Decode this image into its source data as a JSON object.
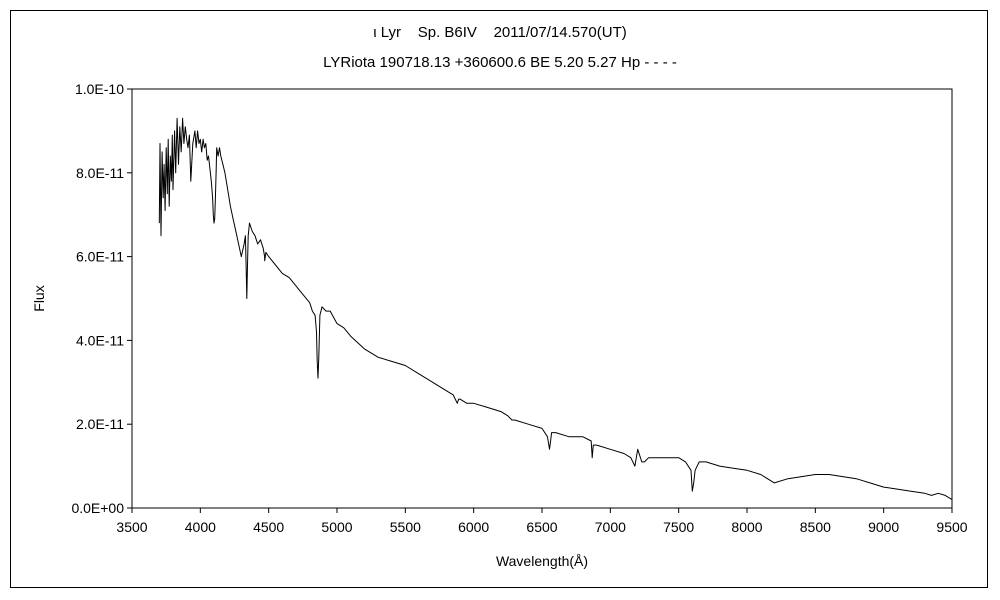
{
  "chart_data": {
    "type": "line",
    "title": "ι Lyr    Sp. B6IV    2011/07/14.570(UT)",
    "subtitle": "LYRiota 190718.13 +360600.6 BE 5.20 5.27 Hp - - - -",
    "xlabel": "Wavelength(Å)",
    "ylabel": "Flux",
    "xlim": [
      3500,
      9500
    ],
    "ylim": [
      0,
      1e-10
    ],
    "x_ticks": [
      3500,
      4000,
      4500,
      5000,
      5500,
      6000,
      6500,
      7000,
      7500,
      8000,
      8500,
      9000,
      9500
    ],
    "x_tick_labels": [
      "3500",
      "4000",
      "4500",
      "5000",
      "5500",
      "6000",
      "6500",
      "7000",
      "7500",
      "8000",
      "8500",
      "9000",
      "9500"
    ],
    "y_ticks": [
      0,
      2e-11,
      4e-11,
      6e-11,
      8e-11,
      1e-10
    ],
    "y_tick_labels": [
      "0.0E+00",
      "2.0E-11",
      "4.0E-11",
      "6.0E-11",
      "8.0E-11",
      "1.0E-10"
    ],
    "grid": false,
    "legend": "none",
    "series": [
      {
        "color": "#000000",
        "x": [
          3700,
          3705,
          3712,
          3720,
          3728,
          3735,
          3742,
          3750,
          3758,
          3765,
          3772,
          3780,
          3788,
          3795,
          3800,
          3812,
          3820,
          3830,
          3840,
          3850,
          3860,
          3870,
          3880,
          3890,
          3900,
          3910,
          3920,
          3930,
          3945,
          3960,
          3970,
          3980,
          3990,
          4000,
          4010,
          4020,
          4030,
          4040,
          4050,
          4060,
          4070,
          4080,
          4090,
          4095,
          4100,
          4105,
          4110,
          4115,
          4120,
          4130,
          4140,
          4150,
          4165,
          4180,
          4200,
          4220,
          4240,
          4260,
          4280,
          4300,
          4320,
          4330,
          4335,
          4340,
          4345,
          4350,
          4360,
          4380,
          4400,
          4420,
          4440,
          4460,
          4470,
          4471,
          4480,
          4500,
          4550,
          4600,
          4650,
          4700,
          4750,
          4800,
          4820,
          4840,
          4850,
          4855,
          4861,
          4867,
          4875,
          4890,
          4920,
          4950,
          5000,
          5050,
          5100,
          5200,
          5300,
          5400,
          5500,
          5600,
          5700,
          5800,
          5850,
          5880,
          5890,
          5900,
          5950,
          6000,
          6100,
          6200,
          6250,
          6280,
          6300,
          6400,
          6500,
          6540,
          6555,
          6563,
          6570,
          6600,
          6700,
          6800,
          6860,
          6867,
          6875,
          6900,
          7000,
          7100,
          7150,
          7180,
          7200,
          7230,
          7250,
          7280,
          7300,
          7400,
          7500,
          7550,
          7590,
          7600,
          7610,
          7620,
          7650,
          7700,
          7800,
          7900,
          8000,
          8100,
          8150,
          8200,
          8300,
          8400,
          8500,
          8600,
          8700,
          8800,
          8850,
          8900,
          8950,
          9000,
          9100,
          9200,
          9300,
          9350,
          9400,
          9450,
          9500
        ],
        "y": [
          6.8e-11,
          8.7e-11,
          6.5e-11,
          8.5e-11,
          7.4e-11,
          8.2e-11,
          7.1e-11,
          8.6e-11,
          7.5e-11,
          8.8e-11,
          7.2e-11,
          8.4e-11,
          7.8e-11,
          8.9e-11,
          7.6e-11,
          9e-11,
          8e-11,
          9.3e-11,
          8.2e-11,
          9.1e-11,
          8.5e-11,
          9.3e-11,
          8.7e-11,
          9.1e-11,
          8.8e-11,
          8.6e-11,
          8.9e-11,
          7.8e-11,
          8.7e-11,
          9e-11,
          8.6e-11,
          9e-11,
          8.7e-11,
          8.8e-11,
          8.5e-11,
          8.8e-11,
          8.6e-11,
          8.7e-11,
          8.3e-11,
          8.4e-11,
          8.1e-11,
          7.8e-11,
          7.4e-11,
          7e-11,
          6.8e-11,
          6.9e-11,
          7.4e-11,
          8e-11,
          8.6e-11,
          8.4e-11,
          8.6e-11,
          8.4e-11,
          8.2e-11,
          8e-11,
          7.6e-11,
          7.2e-11,
          6.9e-11,
          6.6e-11,
          6.3e-11,
          6e-11,
          6.3e-11,
          6.5e-11,
          5.8e-11,
          5e-11,
          5.8e-11,
          6.5e-11,
          6.8e-11,
          6.6e-11,
          6.5e-11,
          6.3e-11,
          6.4e-11,
          6.2e-11,
          6e-11,
          5.9e-11,
          6.1e-11,
          6e-11,
          5.8e-11,
          5.6e-11,
          5.5e-11,
          5.3e-11,
          5.1e-11,
          4.9e-11,
          4.7e-11,
          4.6e-11,
          4.2e-11,
          3.5e-11,
          3.1e-11,
          3.6e-11,
          4.6e-11,
          4.8e-11,
          4.7e-11,
          4.7e-11,
          4.4e-11,
          4.3e-11,
          4.1e-11,
          3.8e-11,
          3.6e-11,
          3.5e-11,
          3.4e-11,
          3.2e-11,
          3e-11,
          2.8e-11,
          2.7e-11,
          2.5e-11,
          2.6e-11,
          2.6e-11,
          2.5e-11,
          2.5e-11,
          2.4e-11,
          2.3e-11,
          2.2e-11,
          2.1e-11,
          2.1e-11,
          2e-11,
          1.9e-11,
          1.7e-11,
          1.4e-11,
          1.6e-11,
          1.8e-11,
          1.8e-11,
          1.7e-11,
          1.7e-11,
          1.6e-11,
          1.2e-11,
          1.5e-11,
          1.5e-11,
          1.4e-11,
          1.3e-11,
          1.2e-11,
          1e-11,
          1.4e-11,
          1.1e-11,
          1.1e-11,
          1.2e-11,
          1.2e-11,
          1.2e-11,
          1.2e-11,
          1.1e-11,
          9e-12,
          4e-12,
          6e-12,
          9e-12,
          1.1e-11,
          1.1e-11,
          1e-11,
          9.5e-12,
          9e-12,
          8e-12,
          7e-12,
          6e-12,
          7e-12,
          7.5e-12,
          8e-12,
          8e-12,
          7.5e-12,
          7e-12,
          6.5e-12,
          6e-12,
          5.5e-12,
          5e-12,
          4.5e-12,
          4e-12,
          3.5e-12,
          3e-12,
          3.5e-12,
          3e-12,
          2e-12
        ]
      }
    ]
  }
}
